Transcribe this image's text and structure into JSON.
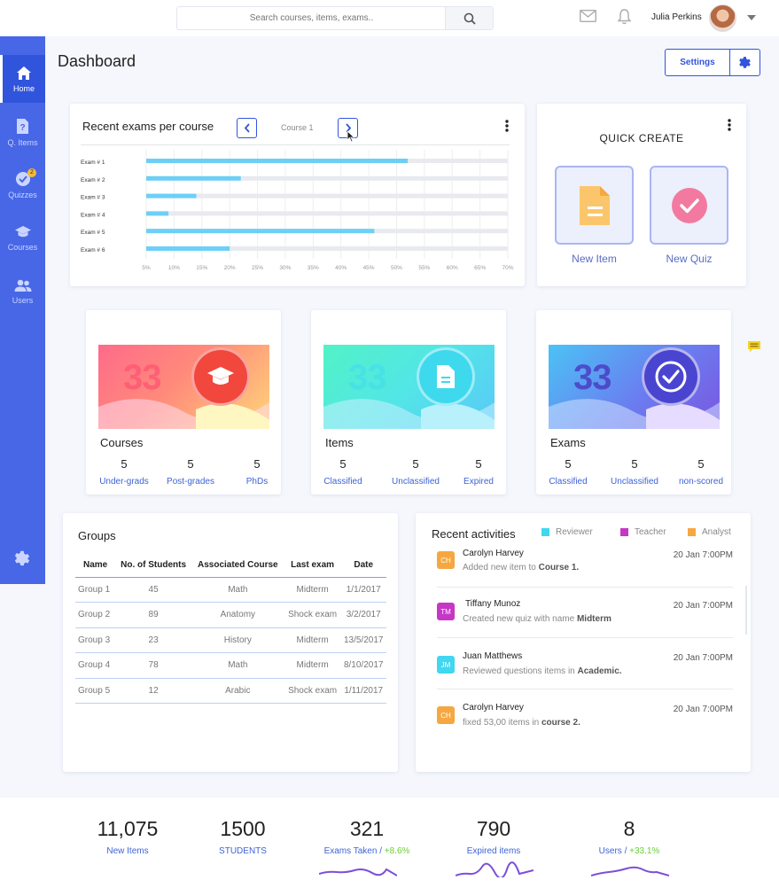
{
  "header": {
    "search_placeholder": "Search courses, items, exams..",
    "user_name": "Julia Perkins",
    "icons": [
      "mail-icon",
      "bell-icon",
      "search-icon",
      "chevron-down-icon"
    ]
  },
  "sidebar": {
    "items": [
      {
        "label": "Home",
        "icon": "home-icon",
        "active": true
      },
      {
        "label": "Q. Items",
        "icon": "question-file-icon"
      },
      {
        "label": "Quizzes",
        "icon": "check-circle-icon",
        "badge": "2"
      },
      {
        "label": "Courses",
        "icon": "graduation-cap-icon"
      },
      {
        "label": "Users",
        "icon": "users-icon"
      }
    ],
    "settings_icon": "gear-icon"
  },
  "page": {
    "title": "Dashboard",
    "settings_label": "Settings"
  },
  "recent_exams": {
    "title": "Recent exams per course",
    "course_label": "Course 1"
  },
  "chart_data": {
    "type": "bar",
    "orientation": "horizontal",
    "title": "Recent exams per course",
    "categories": [
      "Exam # 1",
      "Exam # 2",
      "Exam # 3",
      "Exam # 4",
      "Exam # 5",
      "Exam # 6"
    ],
    "values": [
      52,
      22,
      14,
      9,
      46,
      20
    ],
    "xlim": [
      5,
      70
    ],
    "xticks": [
      "5%",
      "10%",
      "15%",
      "20%",
      "25%",
      "30%",
      "35%",
      "40%",
      "45%",
      "50%",
      "55%",
      "60%",
      "65%",
      "70%"
    ],
    "grid": true,
    "colors": {
      "bar": "#6dcff6",
      "track": "#e8eaf0"
    }
  },
  "quick_create": {
    "title": "QUICK CREATE",
    "items": [
      {
        "label": "New Item",
        "icon": "document-icon"
      },
      {
        "label": "New Quiz",
        "icon": "check-circle-icon"
      }
    ]
  },
  "stats": [
    {
      "big": "33",
      "name": "Courses",
      "icon": "graduation-cap-icon",
      "cols": [
        {
          "value": "5",
          "label": "Under-grads"
        },
        {
          "value": "5",
          "label": "Post-grades"
        },
        {
          "value": "5",
          "label": "PhDs"
        }
      ]
    },
    {
      "big": "33",
      "name": "Items",
      "icon": "document-icon",
      "cols": [
        {
          "value": "5",
          "label": "Classified"
        },
        {
          "value": "5",
          "label": "Unclassified"
        },
        {
          "value": "5",
          "label": "Expired"
        }
      ]
    },
    {
      "big": "33",
      "name": "Exams",
      "icon": "check-circle-icon",
      "cols": [
        {
          "value": "5",
          "label": "Classified"
        },
        {
          "value": "5",
          "label": "Unclassified"
        },
        {
          "value": "5",
          "label": "non-scored"
        }
      ]
    }
  ],
  "groups": {
    "title": "Groups",
    "columns": [
      "Name",
      "No. of Students",
      "Associated Course",
      "Last exam",
      "Date"
    ],
    "rows": [
      [
        "Group 1",
        "45",
        "Math",
        "Midterm",
        "1/1/2017"
      ],
      [
        "Group 2",
        "89",
        "Anatomy",
        "Shock exam",
        "3/2/2017"
      ],
      [
        "Group 3",
        "23",
        "History",
        "Midterm",
        "13/5/2017"
      ],
      [
        "Group 4",
        "78",
        "Math",
        "Midterm",
        "8/10/2017"
      ],
      [
        "Group 5",
        "12",
        "Arabic",
        "Shock exam",
        "1/11/2017"
      ]
    ]
  },
  "activities": {
    "title": "Recent activities",
    "legend": [
      {
        "label": "Reviewer",
        "color": "#40d7f0"
      },
      {
        "label": "Teacher",
        "color": "#c637c6"
      },
      {
        "label": "Analyst",
        "color": "#f5a741"
      }
    ],
    "items": [
      {
        "initials": "CH",
        "color": "#f5a741",
        "name": "Carolyn Harvey",
        "desc": "Added new item to ",
        "target": "Course 1.",
        "time": "20 Jan 7:00PM"
      },
      {
        "initials": "TM",
        "color": "#c637c6",
        "name": "Tiffany Munoz",
        "desc": "Created new quiz with name ",
        "target": "Midterm",
        "time": "20 Jan 7:00PM"
      },
      {
        "initials": "JM",
        "color": "#40d7f0",
        "name": "Juan Matthews",
        "desc": "Reviewed questions items  in ",
        "target": "Academic.",
        "time": "20 Jan 7:00PM"
      },
      {
        "initials": "CH",
        "color": "#f5a741",
        "name": "Carolyn Harvey",
        "desc": "fixed 53,00 items in ",
        "target": "course 2.",
        "time": "20 Jan 7:00PM"
      }
    ]
  },
  "footer": {
    "kpis": [
      {
        "value": "11,075",
        "label": "New Items",
        "pct": ""
      },
      {
        "value": "1500",
        "label": "STUDENTS",
        "pct": ""
      },
      {
        "value": "321",
        "label": "Exams Taken / ",
        "pct": "+8.6%"
      },
      {
        "value": "790",
        "label": "Expired items",
        "pct": ""
      },
      {
        "value": "8",
        "label": "Users / ",
        "pct": "+33.1%"
      }
    ],
    "sparkline_color": "#7b4fd6"
  }
}
